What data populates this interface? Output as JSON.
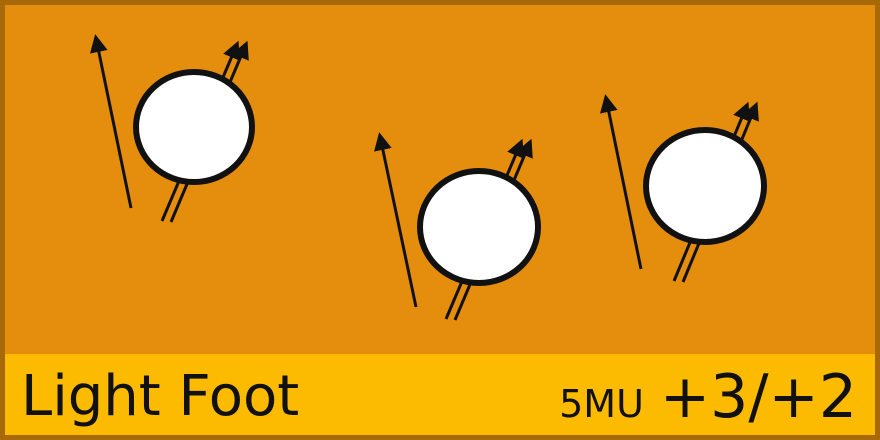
{
  "card": {
    "name": "Light Foot",
    "cost": "5MU",
    "modifier": "+3/+2",
    "figures": [
      {
        "icon": "pebble-with-motion-arrows-icon"
      },
      {
        "icon": "pebble-with-motion-arrows-icon"
      },
      {
        "icon": "pebble-with-motion-arrows-icon"
      }
    ]
  },
  "colors": {
    "background": "#e58e0e",
    "border": "#a86a08",
    "banner": "#fdbb00",
    "text": "#111111",
    "pebble_fill": "#ffffff",
    "outline": "#111111"
  }
}
